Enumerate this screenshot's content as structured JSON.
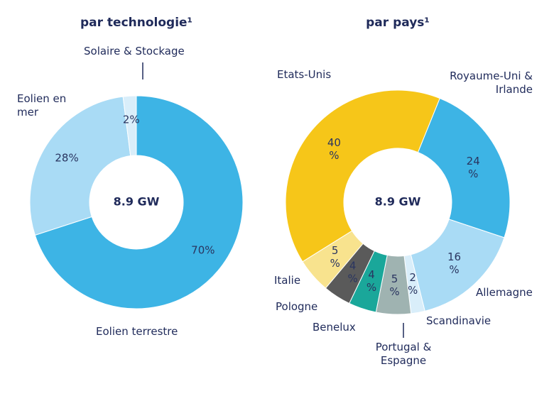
{
  "chart_data": [
    {
      "type": "donut",
      "title": "par technologie¹",
      "center_label": "8.9 GW",
      "categories": [
        "Eolien terrestre",
        "Eolien en mer",
        "Solaire & Stockage"
      ],
      "values": [
        70,
        28,
        2
      ],
      "value_labels": [
        "70%",
        "28%",
        "2%"
      ],
      "colors": [
        "#3db4e5",
        "#a9dbf5",
        "#d9eefa"
      ]
    },
    {
      "type": "donut",
      "title": "par pays¹",
      "center_label": "8.9 GW",
      "categories": [
        "Royaume-Uni & Irlande",
        "Allemagne",
        "Scandinavie",
        "Portugal & Espagne",
        "Benelux",
        "Pologne",
        "Italie",
        "Etats-Unis"
      ],
      "values": [
        24,
        16,
        2,
        5,
        4,
        4,
        5,
        40
      ],
      "value_labels": [
        "24 %",
        "16 %",
        "2 %",
        "5 %",
        "4 %",
        "4 %",
        "5 %",
        "40 %"
      ],
      "colors": [
        "#3db4e5",
        "#a9dbf5",
        "#d9eefa",
        "#9fb3b1",
        "#1aa79a",
        "#5a5a5a",
        "#f8e38e",
        "#f6c619"
      ]
    }
  ]
}
